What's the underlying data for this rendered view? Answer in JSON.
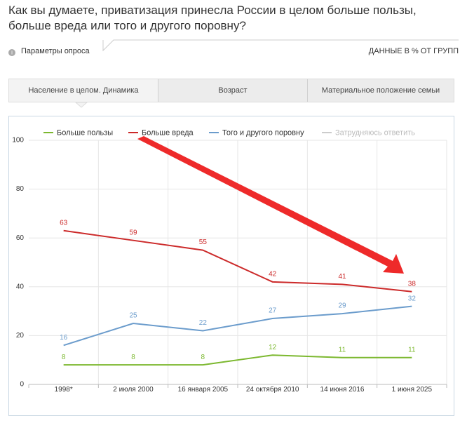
{
  "title": "Как вы думаете, приватизация принесла России в целом больше пользы, больше вреда или того и другого поровну?",
  "survey_params": "Параметры опроса",
  "data_note": "ДАННЫЕ В % ОТ ГРУПП",
  "tabs": [
    "Население в целом. Динамика",
    "Возраст",
    "Материальное положение семьи"
  ],
  "chart_data": {
    "type": "line",
    "categories": [
      "1998*",
      "2 июля 2000",
      "16 января 2005",
      "24 октября 2010",
      "14 июня 2016",
      "1 июня 2025"
    ],
    "series": [
      {
        "name": "Больше пользы",
        "color": "#7cb82f",
        "values": [
          8,
          8,
          8,
          12,
          11,
          11
        ],
        "visible": true
      },
      {
        "name": "Больше вреда",
        "color": "#cc2a2a",
        "values": [
          63,
          59,
          55,
          42,
          41,
          38
        ],
        "visible": true
      },
      {
        "name": "Того и другого поровну",
        "color": "#6b9ccc",
        "values": [
          16,
          25,
          22,
          27,
          29,
          32
        ],
        "visible": true
      },
      {
        "name": "Затрудняюсь ответить",
        "color": "#c8c8c8",
        "values": [
          null,
          null,
          null,
          null,
          null,
          null
        ],
        "visible": false
      }
    ],
    "ylim": [
      0,
      100
    ],
    "yticks": [
      0,
      20,
      40,
      60,
      80,
      100
    ],
    "grid": true
  }
}
